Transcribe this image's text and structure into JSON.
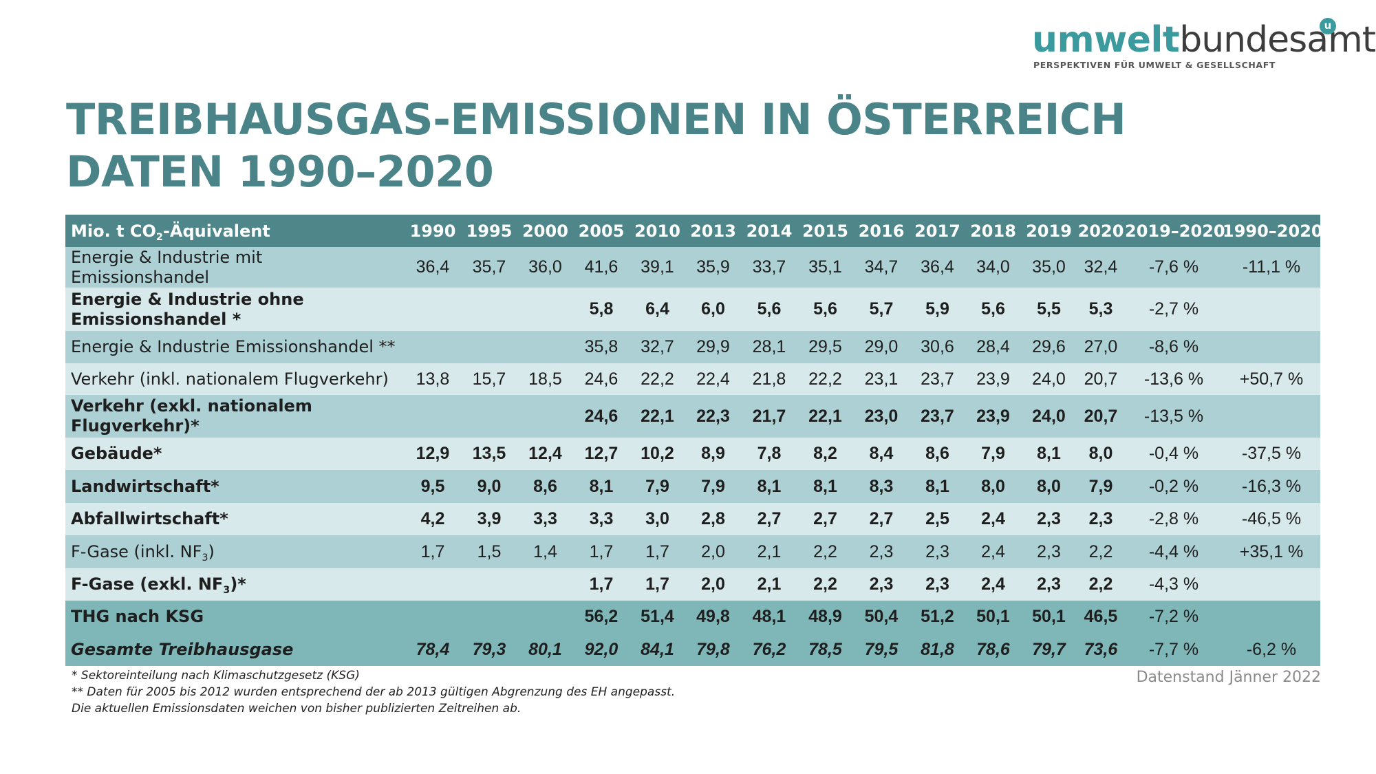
{
  "logo": {
    "brand_bold": "umwelt",
    "brand_light": "bundesamt",
    "mark": "u",
    "tagline": "PERSPEKTIVEN FÜR UMWELT & GESELLSCHAFT"
  },
  "title": {
    "line1": "TREIBHAUSGAS-EMISSIONEN IN ÖSTERREICH",
    "line2": "DATEN 1990–2020"
  },
  "colors": {
    "title": "#4a8488",
    "header_bg": "#4e8689",
    "row_dark": "#acd0d3",
    "row_light": "#d7e9ea",
    "row_total": "#7fb6b8",
    "brand_teal": "#3b9a9d"
  },
  "chart_data": {
    "type": "table",
    "title": "TREIBHAUSGAS-EMISSIONEN IN ÖSTERREICH – DATEN 1990–2020",
    "unit_header": {
      "pre": "Mio. t CO",
      "sub": "2",
      "post": "-Äquivalent"
    },
    "columns": [
      "1990",
      "1995",
      "2000",
      "2005",
      "2010",
      "2013",
      "2014",
      "2015",
      "2016",
      "2017",
      "2018",
      "2019",
      "2020",
      "2019–2020",
      "1990–2020"
    ],
    "rows": [
      {
        "label": {
          "pre": "Energie & Industrie mit Emissionshandel",
          "sub": "",
          "post": ""
        },
        "style": "a",
        "bold": false,
        "italic": false,
        "values": [
          "36,4",
          "35,7",
          "36,0",
          "41,6",
          "39,1",
          "35,9",
          "33,7",
          "35,1",
          "34,7",
          "36,4",
          "34,0",
          "35,0",
          "32,4",
          "-7,6 %",
          "-11,1 %"
        ]
      },
      {
        "label": {
          "pre": "Energie & Industrie ohne Emissionshandel *",
          "sub": "",
          "post": ""
        },
        "style": "b",
        "bold": true,
        "italic": false,
        "values": [
          "",
          "",
          "",
          "5,8",
          "6,4",
          "6,0",
          "5,6",
          "5,6",
          "5,7",
          "5,9",
          "5,6",
          "5,5",
          "5,3",
          "-2,7 %",
          ""
        ]
      },
      {
        "label": {
          "pre": "Energie & Industrie Emissionshandel **",
          "sub": "",
          "post": ""
        },
        "style": "a",
        "bold": false,
        "italic": false,
        "values": [
          "",
          "",
          "",
          "35,8",
          "32,7",
          "29,9",
          "28,1",
          "29,5",
          "29,0",
          "30,6",
          "28,4",
          "29,6",
          "27,0",
          "-8,6 %",
          ""
        ]
      },
      {
        "label": {
          "pre": "Verkehr (inkl. nationalem Flugverkehr)",
          "sub": "",
          "post": ""
        },
        "style": "b",
        "bold": false,
        "italic": false,
        "values": [
          "13,8",
          "15,7",
          "18,5",
          "24,6",
          "22,2",
          "22,4",
          "21,8",
          "22,2",
          "23,1",
          "23,7",
          "23,9",
          "24,0",
          "20,7",
          "-13,6 %",
          "+50,7 %"
        ]
      },
      {
        "label": {
          "pre": "Verkehr (exkl. nationalem Flugverkehr)*",
          "sub": "",
          "post": ""
        },
        "style": "a",
        "bold": true,
        "italic": false,
        "values": [
          "",
          "",
          "",
          "24,6",
          "22,1",
          "22,3",
          "21,7",
          "22,1",
          "23,0",
          "23,7",
          "23,9",
          "24,0",
          "20,7",
          "-13,5 %",
          ""
        ]
      },
      {
        "label": {
          "pre": "Gebäude*",
          "sub": "",
          "post": ""
        },
        "style": "b",
        "bold": true,
        "italic": false,
        "values": [
          "12,9",
          "13,5",
          "12,4",
          "12,7",
          "10,2",
          "8,9",
          "7,8",
          "8,2",
          "8,4",
          "8,6",
          "7,9",
          "8,1",
          "8,0",
          "-0,4 %",
          "-37,5 %"
        ]
      },
      {
        "label": {
          "pre": "Landwirtschaft*",
          "sub": "",
          "post": ""
        },
        "style": "a",
        "bold": true,
        "italic": false,
        "values": [
          "9,5",
          "9,0",
          "8,6",
          "8,1",
          "7,9",
          "7,9",
          "8,1",
          "8,1",
          "8,3",
          "8,1",
          "8,0",
          "8,0",
          "7,9",
          "-0,2 %",
          "-16,3 %"
        ]
      },
      {
        "label": {
          "pre": "Abfallwirtschaft*",
          "sub": "",
          "post": ""
        },
        "style": "b",
        "bold": true,
        "italic": false,
        "values": [
          "4,2",
          "3,9",
          "3,3",
          "3,3",
          "3,0",
          "2,8",
          "2,7",
          "2,7",
          "2,7",
          "2,5",
          "2,4",
          "2,3",
          "2,3",
          "-2,8 %",
          "-46,5 %"
        ]
      },
      {
        "label": {
          "pre": "F-Gase (inkl. NF",
          "sub": "3",
          "post": ")"
        },
        "style": "a",
        "bold": false,
        "italic": false,
        "values": [
          "1,7",
          "1,5",
          "1,4",
          "1,7",
          "1,7",
          "2,0",
          "2,1",
          "2,2",
          "2,3",
          "2,3",
          "2,4",
          "2,3",
          "2,2",
          "-4,4 %",
          "+35,1 %"
        ]
      },
      {
        "label": {
          "pre": "F-Gase (exkl. NF",
          "sub": "3",
          "post": ")*"
        },
        "style": "b",
        "bold": true,
        "italic": false,
        "values": [
          "",
          "",
          "",
          "1,7",
          "1,7",
          "2,0",
          "2,1",
          "2,2",
          "2,3",
          "2,3",
          "2,4",
          "2,3",
          "2,2",
          "-4,3 %",
          ""
        ]
      },
      {
        "label": {
          "pre": "THG nach KSG",
          "sub": "",
          "post": ""
        },
        "style": "c",
        "bold": true,
        "italic": false,
        "values": [
          "",
          "",
          "",
          "56,2",
          "51,4",
          "49,8",
          "48,1",
          "48,9",
          "50,4",
          "51,2",
          "50,1",
          "50,1",
          "46,5",
          "-7,2 %",
          ""
        ]
      },
      {
        "label": {
          "pre": "Gesamte Treibhausgase",
          "sub": "",
          "post": ""
        },
        "style": "c",
        "bold": true,
        "italic": true,
        "values": [
          "78,4",
          "79,3",
          "80,1",
          "92,0",
          "84,1",
          "79,8",
          "76,2",
          "78,5",
          "79,5",
          "81,8",
          "78,6",
          "79,7",
          "73,6",
          "-7,7 %",
          "-6,2 %"
        ]
      }
    ]
  },
  "footnotes": {
    "note1": "* Sektoreinteilung nach Klimaschutzgesetz  (KSG)",
    "note2": "** Daten für 2005 bis 2012 wurden entsprechend der ab 2013 gültigen Abgrenzung des EH angepasst.",
    "note3": "Die aktuellen Emissionsdaten weichen von bisher publizierten Zeitreihen ab."
  },
  "data_status": "Datenstand Jänner 2022"
}
